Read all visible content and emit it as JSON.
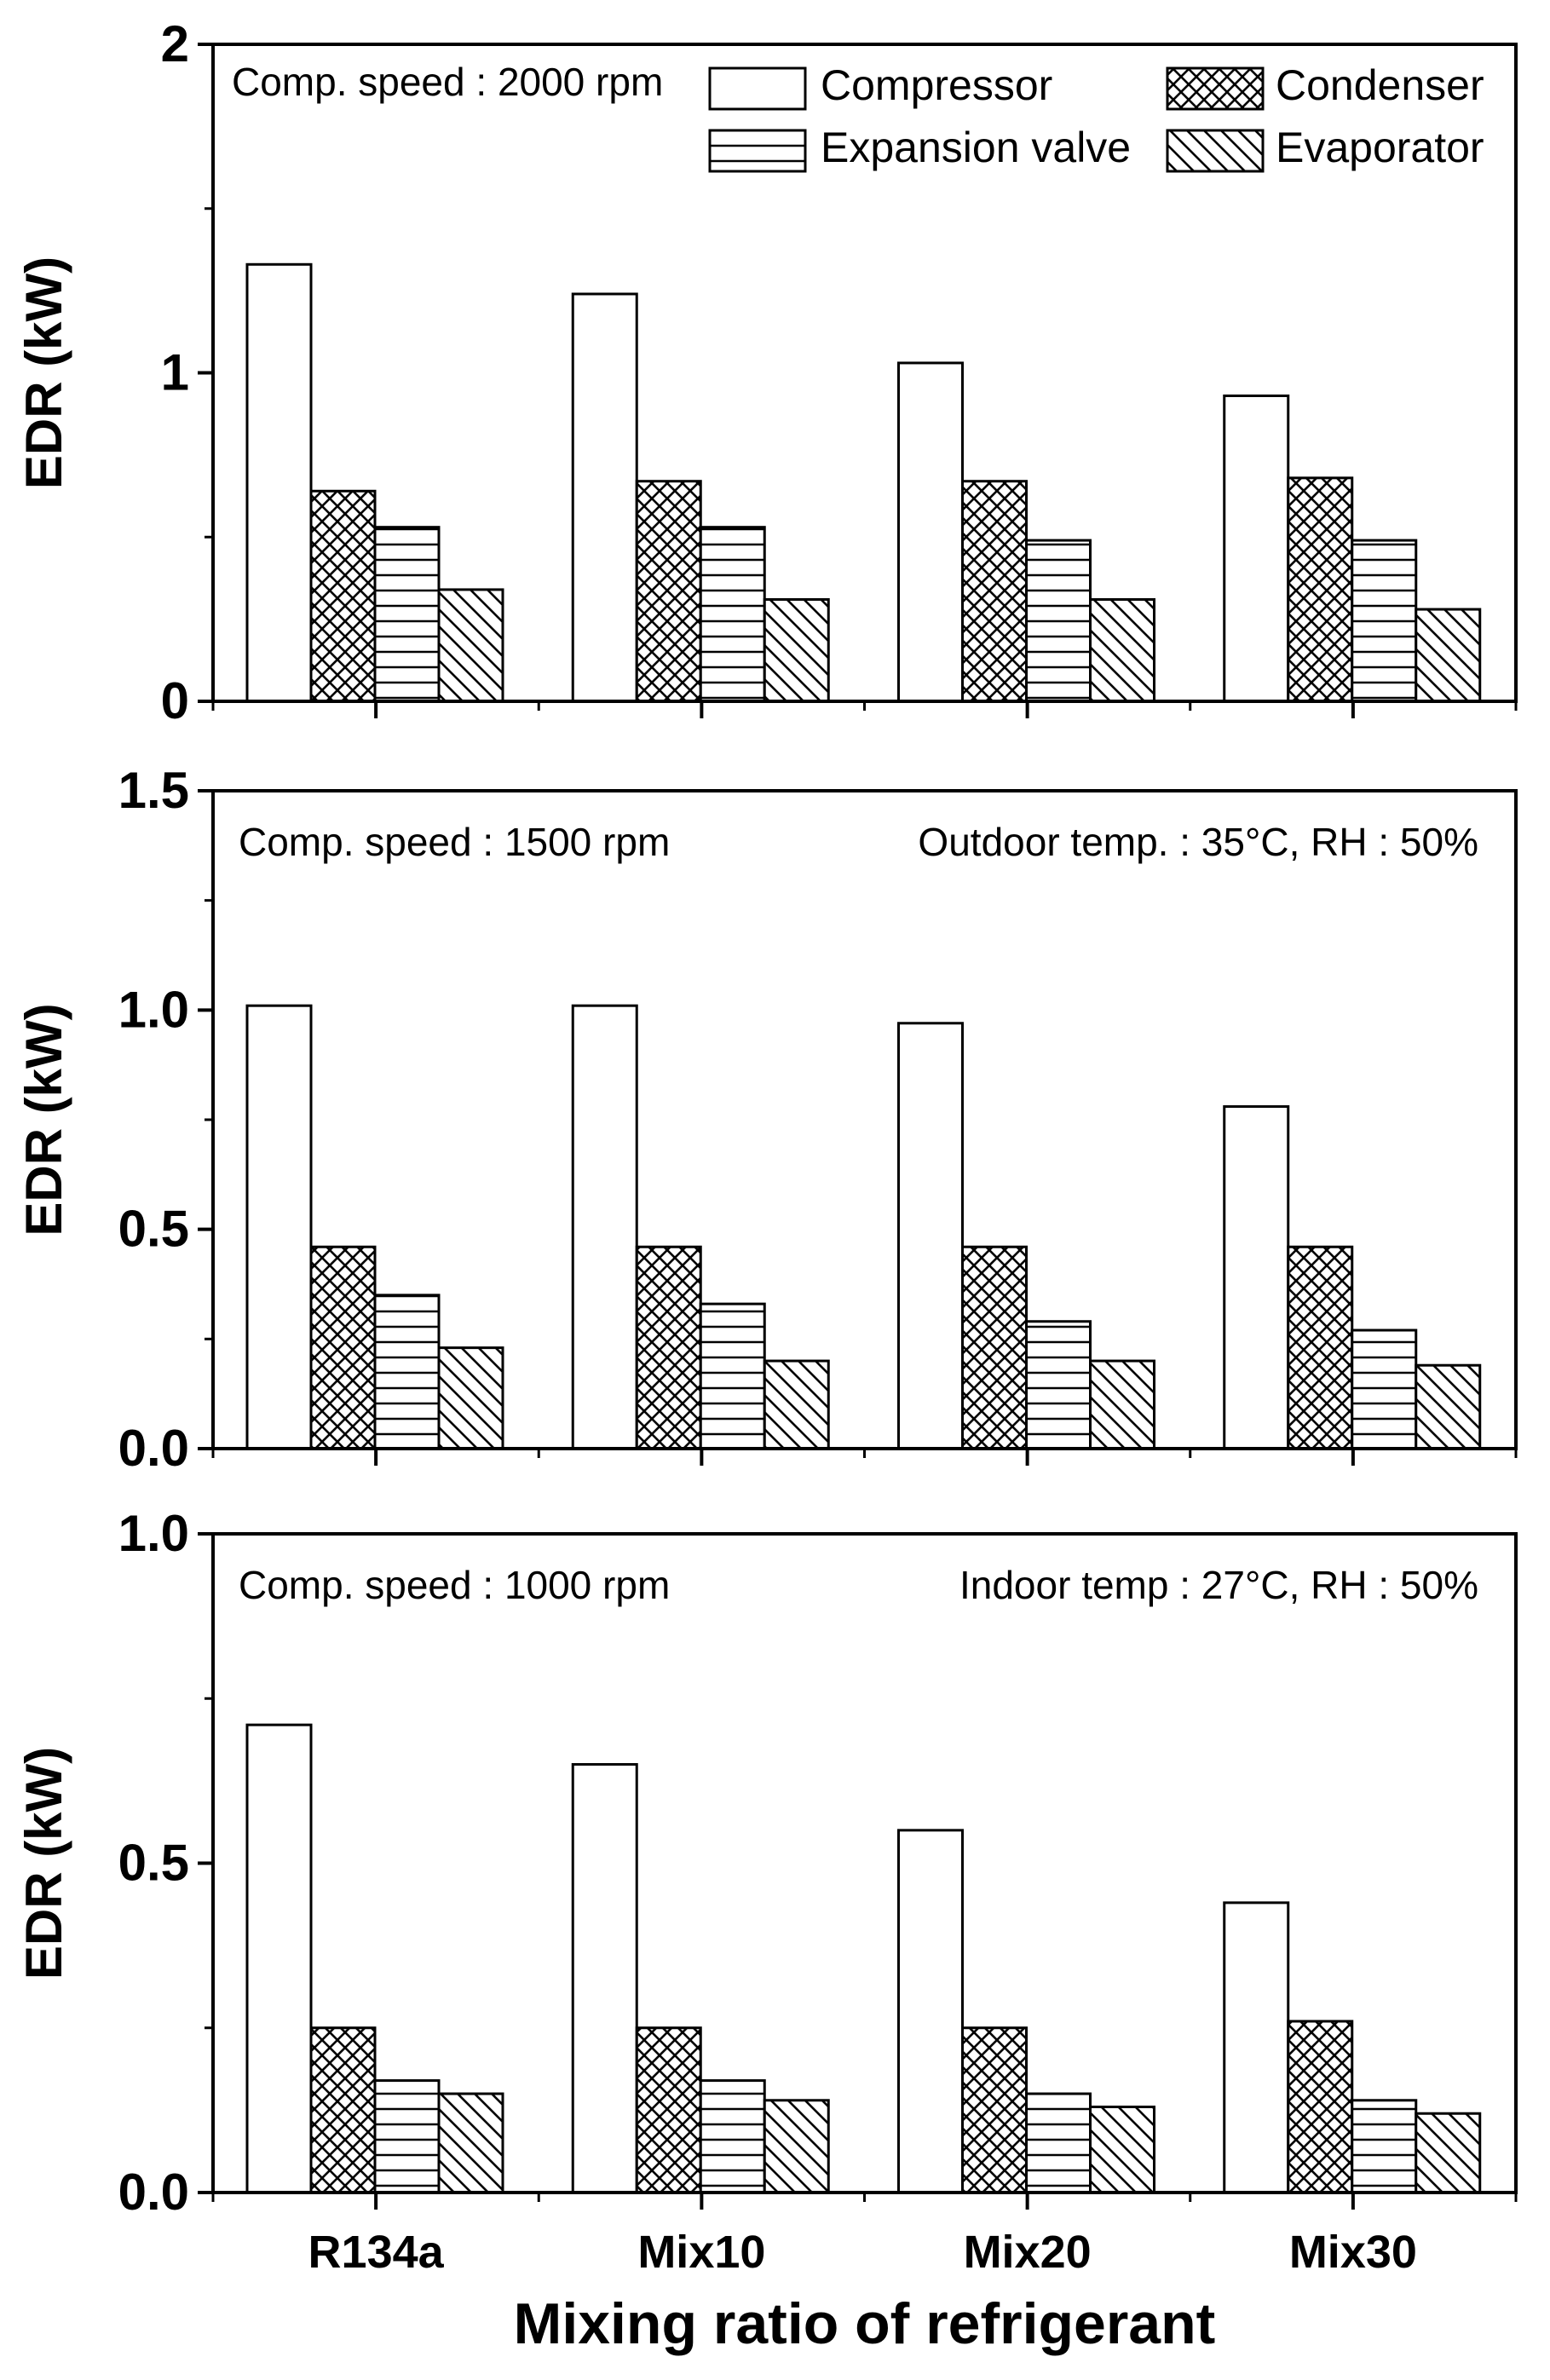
{
  "chart_data": {
    "type": "bar",
    "xlabel": "Mixing ratio of refrigerant",
    "categories": [
      "R134a",
      "Mix10",
      "Mix20",
      "Mix30"
    ],
    "legend": [
      {
        "name": "Compressor",
        "pattern": "empty"
      },
      {
        "name": "Condenser",
        "pattern": "crosshatch"
      },
      {
        "name": "Expansion valve",
        "pattern": "horizontal"
      },
      {
        "name": "Evaporator",
        "pattern": "diagonal"
      }
    ],
    "panels": [
      {
        "ylabel": "EDR (kW)",
        "ylim": [
          0,
          2
        ],
        "yticks": [
          "0",
          "1",
          "2"
        ],
        "annotations": [
          "Comp. speed : 2000 rpm"
        ],
        "series": [
          {
            "name": "Compressor",
            "values": [
              1.33,
              1.24,
              1.03,
              0.93
            ]
          },
          {
            "name": "Condenser",
            "values": [
              0.64,
              0.67,
              0.67,
              0.68
            ]
          },
          {
            "name": "Expansion valve",
            "values": [
              0.53,
              0.53,
              0.49,
              0.49
            ]
          },
          {
            "name": "Evaporator",
            "values": [
              0.34,
              0.31,
              0.31,
              0.28
            ]
          }
        ]
      },
      {
        "ylabel": "EDR (kW)",
        "ylim": [
          0,
          1.5
        ],
        "yticks": [
          "0.0",
          "0.5",
          "1.0",
          "1.5"
        ],
        "annotations": [
          "Comp. speed : 1500 rpm",
          "Outdoor temp. : 35°C, RH : 50%"
        ],
        "series": [
          {
            "name": "Compressor",
            "values": [
              1.01,
              1.01,
              0.97,
              0.78
            ]
          },
          {
            "name": "Condenser",
            "values": [
              0.46,
              0.46,
              0.46,
              0.46
            ]
          },
          {
            "name": "Expansion valve",
            "values": [
              0.35,
              0.33,
              0.29,
              0.27
            ]
          },
          {
            "name": "Evaporator",
            "values": [
              0.23,
              0.2,
              0.2,
              0.19
            ]
          }
        ]
      },
      {
        "ylabel": "EDR (kW)",
        "ylim": [
          0,
          1.0
        ],
        "yticks": [
          "0.0",
          "0.5",
          "1.0"
        ],
        "annotations": [
          "Comp. speed : 1000 rpm",
          "Indoor temp : 27°C, RH : 50%"
        ],
        "series": [
          {
            "name": "Compressor",
            "values": [
              0.71,
              0.65,
              0.55,
              0.44
            ]
          },
          {
            "name": "Condenser",
            "values": [
              0.25,
              0.25,
              0.25,
              0.26
            ]
          },
          {
            "name": "Expansion valve",
            "values": [
              0.17,
              0.17,
              0.15,
              0.14
            ]
          },
          {
            "name": "Evaporator",
            "values": [
              0.15,
              0.14,
              0.13,
              0.12
            ]
          }
        ]
      }
    ]
  }
}
